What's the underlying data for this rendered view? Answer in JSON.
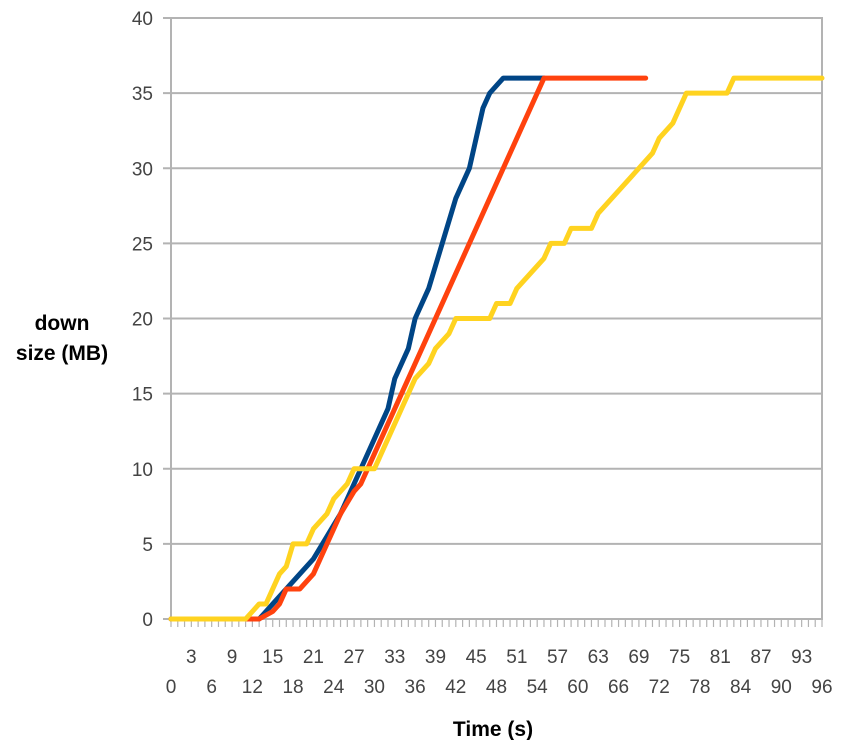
{
  "chart_data": {
    "type": "line",
    "title": "",
    "xlabel": "Time (s)",
    "ylabel_lines": [
      "down",
      "size (MB)"
    ],
    "xlim": [
      0,
      96
    ],
    "ylim": [
      0,
      40
    ],
    "y_ticks": [
      "0",
      "5",
      "10",
      "15",
      "20",
      "25",
      "30",
      "35",
      "40"
    ],
    "x_ticks_upper": [
      "3",
      "9",
      "15",
      "21",
      "27",
      "33",
      "39",
      "45",
      "51",
      "57",
      "63",
      "69",
      "75",
      "81",
      "87",
      "93"
    ],
    "x_ticks_lower": [
      "0",
      "6",
      "12",
      "18",
      "24",
      "30",
      "36",
      "42",
      "48",
      "54",
      "60",
      "66",
      "72",
      "78",
      "84",
      "90",
      "96"
    ],
    "grid": true,
    "legend": "none",
    "series": [
      {
        "color": "#004586",
        "points": [
          [
            0,
            0
          ],
          [
            11,
            0
          ],
          [
            13,
            0
          ],
          [
            14,
            0.5
          ],
          [
            15,
            1
          ],
          [
            17,
            2
          ],
          [
            19,
            3
          ],
          [
            21,
            4
          ],
          [
            23,
            5.5
          ],
          [
            25,
            7
          ],
          [
            27,
            9
          ],
          [
            28,
            10
          ],
          [
            29,
            11
          ],
          [
            31,
            13
          ],
          [
            32,
            14
          ],
          [
            33,
            16
          ],
          [
            35,
            18
          ],
          [
            36,
            20
          ],
          [
            38,
            22
          ],
          [
            40,
            25
          ],
          [
            42,
            28
          ],
          [
            44,
            30
          ],
          [
            45,
            32
          ],
          [
            46,
            34
          ],
          [
            47,
            35
          ],
          [
            48,
            35.5
          ],
          [
            49,
            36
          ],
          [
            55,
            36
          ]
        ]
      },
      {
        "color": "#ff420e",
        "points": [
          [
            0,
            0
          ],
          [
            11,
            0
          ],
          [
            13,
            0
          ],
          [
            15,
            0.5
          ],
          [
            16,
            1
          ],
          [
            17,
            2
          ],
          [
            19,
            2
          ],
          [
            21,
            3
          ],
          [
            23,
            5
          ],
          [
            25,
            7
          ],
          [
            27,
            8.5
          ],
          [
            28,
            9
          ],
          [
            29,
            10
          ],
          [
            55,
            36
          ],
          [
            70,
            36
          ]
        ]
      },
      {
        "color": "#ffd320",
        "points": [
          [
            0,
            0
          ],
          [
            11,
            0
          ],
          [
            12,
            0.5
          ],
          [
            13,
            1
          ],
          [
            14,
            1
          ],
          [
            15,
            2
          ],
          [
            16,
            3
          ],
          [
            17,
            3.5
          ],
          [
            18,
            5
          ],
          [
            20,
            5
          ],
          [
            21,
            6
          ],
          [
            22,
            6.5
          ],
          [
            23,
            7
          ],
          [
            24,
            8
          ],
          [
            25,
            8.5
          ],
          [
            26,
            9
          ],
          [
            27,
            10
          ],
          [
            30,
            10
          ],
          [
            31,
            11
          ],
          [
            32,
            12
          ],
          [
            34,
            14
          ],
          [
            36,
            16
          ],
          [
            38,
            17
          ],
          [
            39,
            18
          ],
          [
            41,
            19
          ],
          [
            42,
            20
          ],
          [
            47,
            20
          ],
          [
            48,
            21
          ],
          [
            50,
            21
          ],
          [
            51,
            22
          ],
          [
            53,
            23
          ],
          [
            55,
            24
          ],
          [
            56,
            25
          ],
          [
            58,
            25
          ],
          [
            59,
            26
          ],
          [
            62,
            26
          ],
          [
            63,
            27
          ],
          [
            65,
            28
          ],
          [
            67,
            29
          ],
          [
            69,
            30
          ],
          [
            71,
            31
          ],
          [
            72,
            32
          ],
          [
            74,
            33
          ],
          [
            75,
            34
          ],
          [
            76,
            35
          ],
          [
            82,
            35
          ],
          [
            83,
            36
          ],
          [
            96,
            36
          ]
        ]
      }
    ]
  }
}
